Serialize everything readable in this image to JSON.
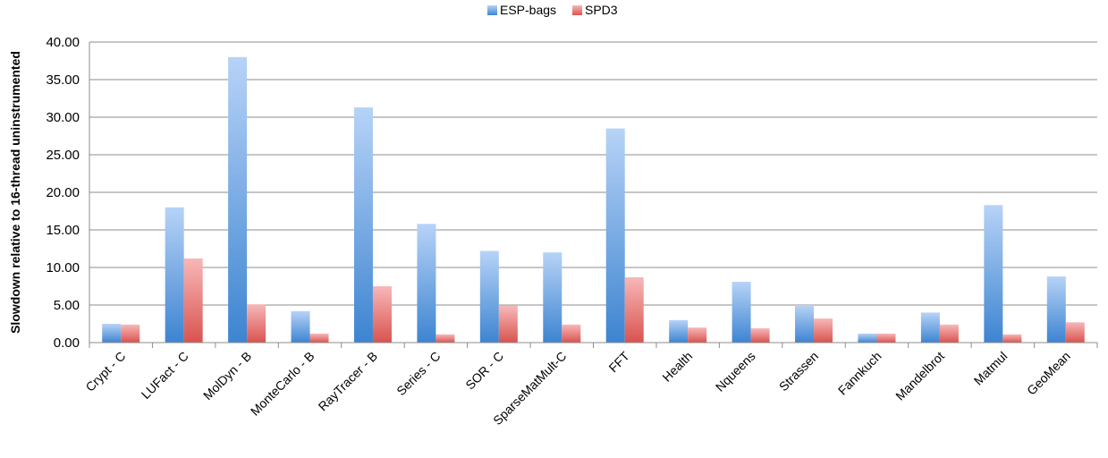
{
  "chart_data": {
    "type": "bar",
    "title": "",
    "xlabel": "",
    "ylabel": "Slowdown relative to 16-thread uninstrumented",
    "ylim": [
      0,
      40
    ],
    "yticks": [
      "0.00",
      "5.00",
      "10.00",
      "15.00",
      "20.00",
      "25.00",
      "30.00",
      "35.00",
      "40.00"
    ],
    "grid": true,
    "legend_position": "top",
    "categories": [
      "Crypt - C",
      "LUFact - C",
      "MolDyn - B",
      "MonteCarlo - B",
      "RayTracer - B",
      "Series - C",
      "SOR - C",
      "SparseMatMult-C",
      "FFT",
      "Health",
      "Nqueens",
      "Strassen",
      "Fannkuch",
      "Mandelbrot",
      "Matmul",
      "GeoMean"
    ],
    "series": [
      {
        "name": "ESP-bags",
        "color": "#5b9bd5",
        "values": [
          2.5,
          18.0,
          38.0,
          4.2,
          31.3,
          15.8,
          12.2,
          12.0,
          28.5,
          3.0,
          8.1,
          5.0,
          1.2,
          4.0,
          18.3,
          8.8
        ]
      },
      {
        "name": "SPD3",
        "color": "#e06666",
        "values": [
          2.4,
          11.2,
          5.1,
          1.2,
          7.5,
          1.1,
          4.9,
          2.4,
          8.7,
          2.0,
          1.9,
          3.2,
          1.2,
          2.4,
          1.1,
          2.7
        ]
      }
    ]
  }
}
